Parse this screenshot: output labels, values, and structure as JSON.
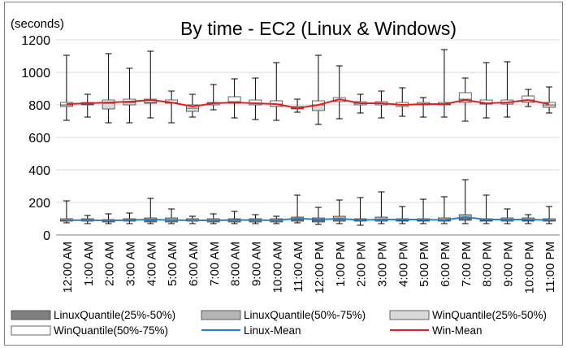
{
  "chart_data": {
    "type": "box-plot",
    "title": "By time - EC2 (Linux & Windows)",
    "ylabel": "(seconds)",
    "ylim": [
      0,
      1200
    ],
    "yticks": [
      0,
      200,
      400,
      600,
      800,
      1000,
      1200
    ],
    "grid": true,
    "categories": [
      "12:00 AM",
      "1:00 AM",
      "2:00 AM",
      "3:00 AM",
      "4:00 AM",
      "5:00 AM",
      "6:00 AM",
      "7:00 AM",
      "8:00 AM",
      "9:00 AM",
      "10:00 AM",
      "11:00 AM",
      "12:00 PM",
      "1:00 PM",
      "2:00 PM",
      "3:00 PM",
      "4:00 PM",
      "5:00 PM",
      "6:00 PM",
      "7:00 PM",
      "8:00 PM",
      "9:00 PM",
      "10:00 PM",
      "11:00 PM"
    ],
    "win": {
      "min": [
        705,
        725,
        690,
        690,
        720,
        690,
        725,
        770,
        720,
        710,
        705,
        755,
        680,
        715,
        750,
        720,
        730,
        725,
        725,
        700,
        720,
        725,
        790,
        750
      ],
      "q1": [
        790,
        800,
        775,
        800,
        810,
        810,
        760,
        800,
        810,
        800,
        790,
        775,
        765,
        820,
        800,
        800,
        790,
        800,
        800,
        815,
        805,
        805,
        815,
        785
      ],
      "median": [
        800,
        805,
        810,
        815,
        815,
        815,
        780,
        810,
        820,
        810,
        805,
        780,
        800,
        830,
        810,
        810,
        800,
        805,
        805,
        835,
        810,
        815,
        830,
        800
      ],
      "q3": [
        815,
        815,
        830,
        835,
        835,
        830,
        800,
        815,
        850,
        830,
        825,
        790,
        825,
        845,
        820,
        820,
        815,
        815,
        815,
        875,
        830,
        830,
        855,
        815
      ],
      "max": [
        1105,
        865,
        1115,
        1025,
        1130,
        885,
        865,
        925,
        960,
        965,
        1060,
        835,
        1105,
        1040,
        865,
        885,
        905,
        845,
        1140,
        965,
        1060,
        1065,
        895,
        910
      ],
      "mean": [
        805,
        810,
        815,
        820,
        830,
        815,
        790,
        810,
        815,
        810,
        805,
        780,
        800,
        835,
        810,
        810,
        800,
        805,
        805,
        830,
        810,
        815,
        830,
        805
      ]
    },
    "linux": {
      "min": [
        75,
        70,
        70,
        70,
        70,
        70,
        70,
        70,
        70,
        70,
        70,
        75,
        65,
        70,
        60,
        70,
        70,
        70,
        70,
        70,
        70,
        70,
        70,
        70
      ],
      "q1": [
        85,
        85,
        80,
        85,
        80,
        80,
        85,
        80,
        80,
        80,
        80,
        85,
        80,
        85,
        85,
        85,
        85,
        85,
        85,
        90,
        85,
        85,
        85,
        85
      ],
      "median": [
        90,
        90,
        90,
        90,
        90,
        90,
        90,
        90,
        90,
        90,
        90,
        95,
        90,
        95,
        90,
        95,
        90,
        90,
        90,
        100,
        90,
        95,
        90,
        90
      ],
      "q3": [
        100,
        100,
        95,
        100,
        105,
        105,
        100,
        100,
        100,
        100,
        100,
        110,
        105,
        115,
        100,
        110,
        100,
        100,
        105,
        125,
        100,
        105,
        105,
        100
      ],
      "max": [
        210,
        120,
        130,
        135,
        225,
        160,
        115,
        130,
        145,
        125,
        115,
        245,
        170,
        215,
        230,
        265,
        175,
        220,
        235,
        340,
        245,
        160,
        125,
        175
      ],
      "mean": [
        90,
        92,
        88,
        92,
        95,
        92,
        90,
        90,
        92,
        92,
        90,
        102,
        95,
        100,
        92,
        95,
        95,
        95,
        92,
        110,
        95,
        95,
        95,
        92
      ]
    },
    "legend": [
      {
        "label": "LinuxQuantile(25%-50%)",
        "color": "#7f7f7f"
      },
      {
        "label": "LinuxQuantile(50%-75%)",
        "color": "#b4b4b4"
      },
      {
        "label": "WinQuantile(25%-50%)",
        "color": "#d9d9d9"
      },
      {
        "label": "WinQuantile(50%-75%)",
        "color": "#ffffff"
      },
      {
        "label": "Linux-Mean",
        "color": "#2e7fc0"
      },
      {
        "label": "Win-Mean",
        "color": "#e02020"
      }
    ],
    "colors": {
      "linux_q1": "#7f7f7f",
      "linux_q3": "#b4b4b4",
      "win_q1": "#d9d9d9",
      "win_q3": "#ffffff",
      "linux_mean": "#2e7fc0",
      "win_mean": "#e02020",
      "grid": "#d9d9d9",
      "whisker": "#000000"
    }
  }
}
